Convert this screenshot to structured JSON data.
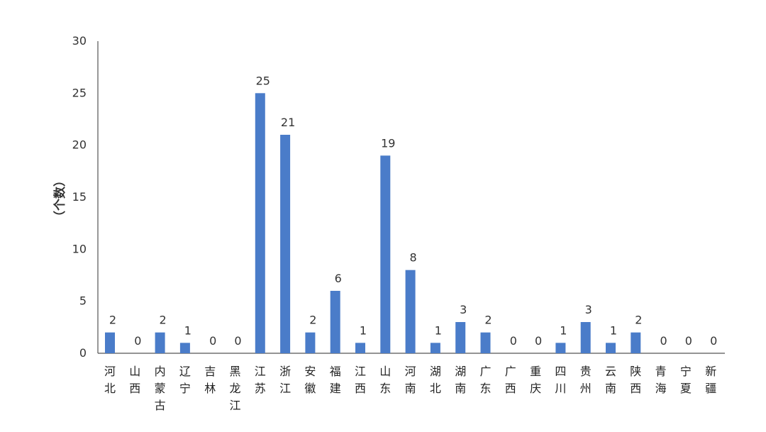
{
  "chart_data": {
    "type": "bar",
    "categories": [
      "河北",
      "山西",
      "内蒙古",
      "辽宁",
      "吉林",
      "黑龙江",
      "江苏",
      "浙江",
      "安徽",
      "福建",
      "江西",
      "山东",
      "河南",
      "湖北",
      "湖南",
      "广东",
      "广西",
      "重庆",
      "四川",
      "贵州",
      "云南",
      "陕西",
      "青海",
      "宁夏",
      "新疆"
    ],
    "values": [
      2,
      0,
      2,
      1,
      0,
      0,
      25,
      21,
      2,
      6,
      1,
      19,
      8,
      1,
      3,
      2,
      0,
      0,
      1,
      3,
      1,
      2,
      0,
      0,
      0
    ],
    "title": "",
    "xlabel": "",
    "ylabel": "（个数）",
    "ylim": [
      0,
      30
    ],
    "yticks": [
      0,
      5,
      10,
      15,
      20,
      25,
      30
    ],
    "grid": false,
    "legend": "none",
    "bar_color": "#4a7cc9"
  }
}
